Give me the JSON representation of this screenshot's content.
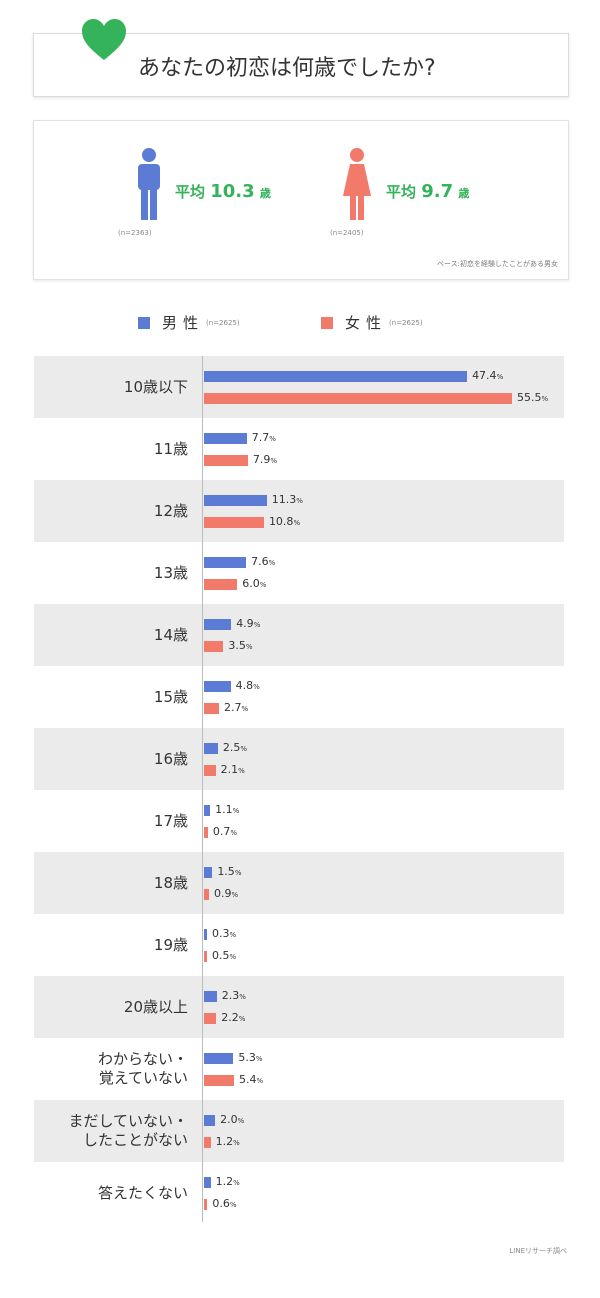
{
  "title": "あなたの初恋は何歳でしたか?",
  "colors": {
    "male": "#5b7bd5",
    "female": "#f27a6b",
    "accent": "#35b35a",
    "row_shade": "#ebebeb"
  },
  "summary": {
    "male": {
      "avg_prefix": "平均",
      "avg_value": "10.3",
      "avg_unit": "歳",
      "n": "(n=2363)"
    },
    "female": {
      "avg_prefix": "平均",
      "avg_value": "9.7",
      "avg_unit": "歳",
      "n": "(n=2405)"
    },
    "base_note": "ベース:初恋を経験したことがある男女"
  },
  "legend": {
    "male": {
      "label": "男性",
      "n": "(n=2625)"
    },
    "female": {
      "label": "女性",
      "n": "(n=2625)"
    }
  },
  "chart_data": {
    "type": "bar",
    "orientation": "horizontal",
    "unit": "%",
    "categories": [
      "10歳以下",
      "11歳",
      "12歳",
      "13歳",
      "14歳",
      "15歳",
      "16歳",
      "17歳",
      "18歳",
      "19歳",
      "20歳以上",
      "わからない・\n覚えていない",
      "まだしていない・\nしたことがない",
      "答えたくない"
    ],
    "series": [
      {
        "name": "男性",
        "values": [
          47.4,
          7.7,
          11.3,
          7.6,
          4.9,
          4.8,
          2.5,
          1.1,
          1.5,
          0.3,
          2.3,
          5.3,
          2.0,
          1.2
        ]
      },
      {
        "name": "女性",
        "values": [
          55.5,
          7.9,
          10.8,
          6.0,
          3.5,
          2.7,
          2.1,
          0.7,
          0.9,
          0.5,
          2.2,
          5.4,
          1.2,
          0.6
        ]
      }
    ]
  },
  "source": "LINEリサーチ調べ"
}
